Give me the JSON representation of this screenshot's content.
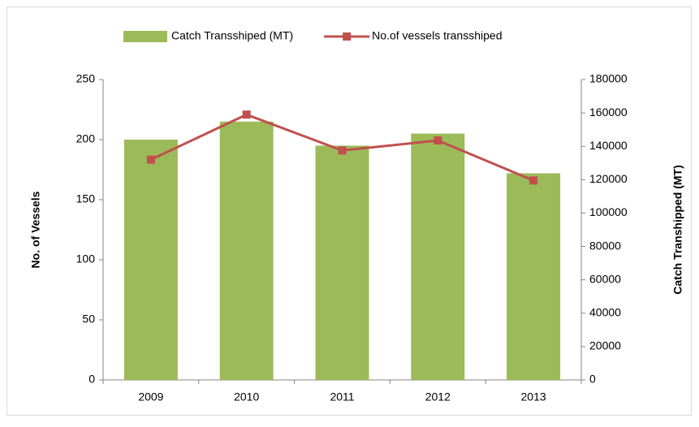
{
  "chart_data": {
    "type": "bar_line",
    "categories": [
      "2009",
      "2010",
      "2011",
      "2012",
      "2013"
    ],
    "series": [
      {
        "name": "Catch Transshiped (MT)",
        "color": "#9bbb59",
        "type": "bar",
        "axis": "y",
        "values": [
          200,
          215,
          195,
          205,
          172
        ]
      },
      {
        "name": "No.of vessels transshiped",
        "color": "#c0504d",
        "type": "line",
        "axis": "y2",
        "values": [
          132000,
          159000,
          137500,
          143500,
          119500
        ]
      }
    ],
    "ylabel": "No. of Vessels",
    "y2label": "Catch Transhipped (MT)",
    "ylim": [
      0,
      250
    ],
    "yticks": [
      0,
      50,
      100,
      150,
      200,
      250
    ],
    "y2lim": [
      0,
      180000
    ],
    "y2ticks": [
      0,
      20000,
      40000,
      60000,
      80000,
      100000,
      120000,
      140000,
      160000,
      180000
    ],
    "legend": "top",
    "grid": false
  }
}
